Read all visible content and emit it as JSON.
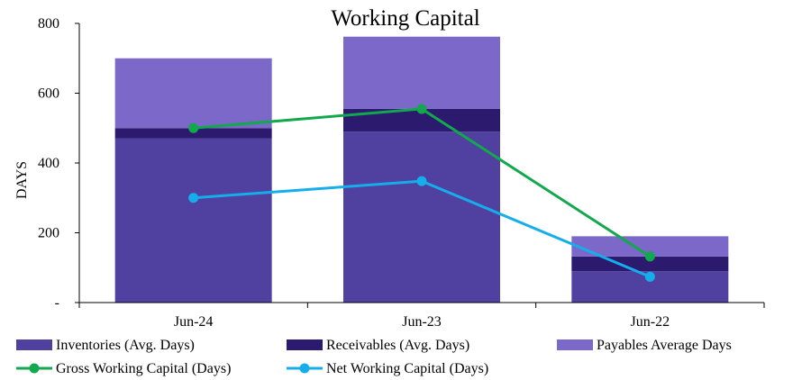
{
  "chart_data": {
    "type": "bar",
    "title": "Working Capital",
    "ylabel": "DAYS",
    "xlabel": "",
    "ylim": [
      0,
      800
    ],
    "yticks": [
      {
        "value": 0,
        "label": "-"
      },
      {
        "value": 200,
        "label": "200"
      },
      {
        "value": 400,
        "label": "400"
      },
      {
        "value": 600,
        "label": "600"
      },
      {
        "value": 800,
        "label": "800"
      }
    ],
    "categories": [
      "Jun-24",
      "Jun-23",
      "Jun-22"
    ],
    "stacked": true,
    "grid": false,
    "legend_position": "bottom",
    "series": [
      {
        "name": "Inventories (Avg. Days)",
        "kind": "bar",
        "color": "#5040a0",
        "values": [
          470,
          490,
          90
        ]
      },
      {
        "name": "Receivables (Avg. Days)",
        "kind": "bar",
        "color": "#2b1a6e",
        "values": [
          30,
          65,
          42
        ]
      },
      {
        "name": "Payables Average Days",
        "kind": "bar",
        "color": "#7b68c8",
        "values": [
          200,
          207,
          58
        ]
      },
      {
        "name": "Gross Working Capital (Days)",
        "kind": "line",
        "color": "#12a84e",
        "values": [
          500,
          555,
          132
        ]
      },
      {
        "name": "Net Working Capital (Days)",
        "kind": "line",
        "color": "#16aeea",
        "values": [
          300,
          348,
          74
        ]
      }
    ]
  }
}
